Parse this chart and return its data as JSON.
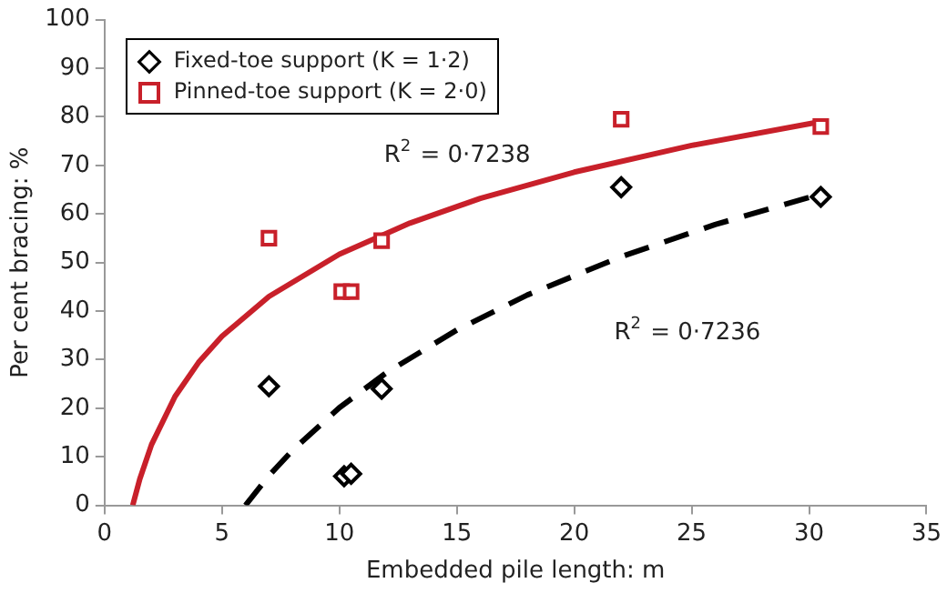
{
  "chart_data": {
    "type": "scatter",
    "xlabel": "Embedded pile length: m",
    "ylabel": "Per cent bracing: %",
    "xlim": [
      0,
      35
    ],
    "xticks": [
      0,
      5,
      10,
      15,
      20,
      25,
      30,
      35
    ],
    "ylim": [
      0,
      100
    ],
    "yticks": [
      0,
      10,
      20,
      30,
      40,
      50,
      60,
      70,
      80,
      90,
      100
    ],
    "grid": false,
    "legend": "top left",
    "series": [
      {
        "name": "Fixed-toe support (K = 1·2)",
        "type": "scatter",
        "marker": "diamond",
        "color": "#000000",
        "x": [
          7,
          10.2,
          10.5,
          11.8,
          22,
          30.5
        ],
        "values": [
          24.5,
          6,
          6.5,
          24,
          65.5,
          63.5
        ]
      },
      {
        "name": "Pinned-toe support (K = 2·0)",
        "type": "scatter",
        "marker": "square",
        "color": "#c8202a",
        "x": [
          7,
          10.1,
          10.5,
          11.8,
          22,
          30.5
        ],
        "values": [
          55,
          44,
          44,
          54.5,
          79.5,
          78
        ]
      },
      {
        "type": "line",
        "marker": "none",
        "line_style": "solid",
        "color": "#c8202a",
        "x": [
          1.2,
          1.5,
          2,
          3,
          4,
          5,
          7,
          10,
          13,
          16,
          20,
          25,
          30.5
        ],
        "values": [
          0,
          5.4,
          12.5,
          22.4,
          29.4,
          34.8,
          43,
          51.7,
          58.1,
          63.2,
          68.6,
          74.1,
          79
        ]
      },
      {
        "type": "line",
        "marker": "none",
        "line_style": "dashed",
        "color": "#000000",
        "x": [
          6,
          7,
          8,
          10,
          12,
          15,
          18,
          22,
          26,
          30.5
        ],
        "values": [
          0,
          6.1,
          11.3,
          20.1,
          27.3,
          36.1,
          43.3,
          51.2,
          57.8,
          64.1
        ]
      }
    ],
    "annotations": [
      "R$^{2}$ = 0·7238",
      "R$^{2}$ = 0·7236"
    ]
  }
}
